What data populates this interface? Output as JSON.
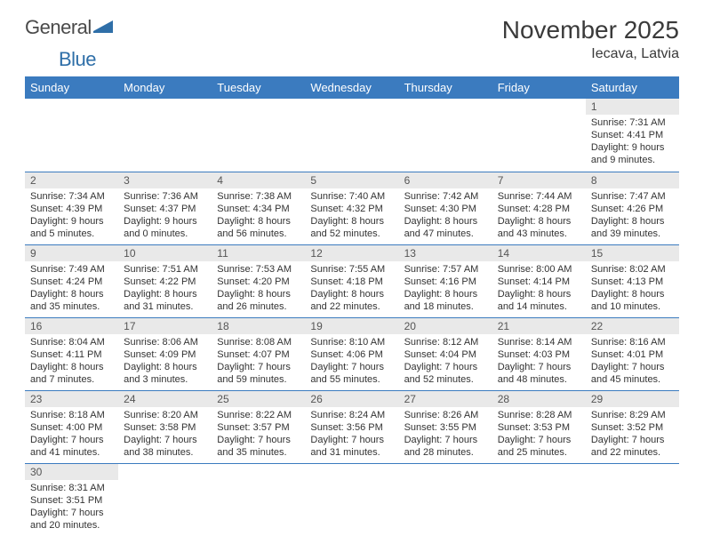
{
  "logo": {
    "text_a": "General",
    "text_b": "Blue"
  },
  "title": "November 2025",
  "location": "Iecava, Latvia",
  "colors": {
    "header_bg": "#3b7bbf",
    "header_fg": "#ffffff",
    "daynum_bg": "#e9e9e9",
    "cell_border": "#3b7bbf",
    "text": "#333333",
    "logo_gray": "#4a4a4a",
    "logo_blue": "#2f6fa8"
  },
  "day_headers": [
    "Sunday",
    "Monday",
    "Tuesday",
    "Wednesday",
    "Thursday",
    "Friday",
    "Saturday"
  ],
  "weeks": [
    [
      null,
      null,
      null,
      null,
      null,
      null,
      {
        "n": "1",
        "sr": "7:31 AM",
        "ss": "4:41 PM",
        "dh": "9",
        "dm": "9"
      }
    ],
    [
      {
        "n": "2",
        "sr": "7:34 AM",
        "ss": "4:39 PM",
        "dh": "9",
        "dm": "5"
      },
      {
        "n": "3",
        "sr": "7:36 AM",
        "ss": "4:37 PM",
        "dh": "9",
        "dm": "0"
      },
      {
        "n": "4",
        "sr": "7:38 AM",
        "ss": "4:34 PM",
        "dh": "8",
        "dm": "56"
      },
      {
        "n": "5",
        "sr": "7:40 AM",
        "ss": "4:32 PM",
        "dh": "8",
        "dm": "52"
      },
      {
        "n": "6",
        "sr": "7:42 AM",
        "ss": "4:30 PM",
        "dh": "8",
        "dm": "47"
      },
      {
        "n": "7",
        "sr": "7:44 AM",
        "ss": "4:28 PM",
        "dh": "8",
        "dm": "43"
      },
      {
        "n": "8",
        "sr": "7:47 AM",
        "ss": "4:26 PM",
        "dh": "8",
        "dm": "39"
      }
    ],
    [
      {
        "n": "9",
        "sr": "7:49 AM",
        "ss": "4:24 PM",
        "dh": "8",
        "dm": "35"
      },
      {
        "n": "10",
        "sr": "7:51 AM",
        "ss": "4:22 PM",
        "dh": "8",
        "dm": "31"
      },
      {
        "n": "11",
        "sr": "7:53 AM",
        "ss": "4:20 PM",
        "dh": "8",
        "dm": "26"
      },
      {
        "n": "12",
        "sr": "7:55 AM",
        "ss": "4:18 PM",
        "dh": "8",
        "dm": "22"
      },
      {
        "n": "13",
        "sr": "7:57 AM",
        "ss": "4:16 PM",
        "dh": "8",
        "dm": "18"
      },
      {
        "n": "14",
        "sr": "8:00 AM",
        "ss": "4:14 PM",
        "dh": "8",
        "dm": "14"
      },
      {
        "n": "15",
        "sr": "8:02 AM",
        "ss": "4:13 PM",
        "dh": "8",
        "dm": "10"
      }
    ],
    [
      {
        "n": "16",
        "sr": "8:04 AM",
        "ss": "4:11 PM",
        "dh": "8",
        "dm": "7"
      },
      {
        "n": "17",
        "sr": "8:06 AM",
        "ss": "4:09 PM",
        "dh": "8",
        "dm": "3"
      },
      {
        "n": "18",
        "sr": "8:08 AM",
        "ss": "4:07 PM",
        "dh": "7",
        "dm": "59"
      },
      {
        "n": "19",
        "sr": "8:10 AM",
        "ss": "4:06 PM",
        "dh": "7",
        "dm": "55"
      },
      {
        "n": "20",
        "sr": "8:12 AM",
        "ss": "4:04 PM",
        "dh": "7",
        "dm": "52"
      },
      {
        "n": "21",
        "sr": "8:14 AM",
        "ss": "4:03 PM",
        "dh": "7",
        "dm": "48"
      },
      {
        "n": "22",
        "sr": "8:16 AM",
        "ss": "4:01 PM",
        "dh": "7",
        "dm": "45"
      }
    ],
    [
      {
        "n": "23",
        "sr": "8:18 AM",
        "ss": "4:00 PM",
        "dh": "7",
        "dm": "41"
      },
      {
        "n": "24",
        "sr": "8:20 AM",
        "ss": "3:58 PM",
        "dh": "7",
        "dm": "38"
      },
      {
        "n": "25",
        "sr": "8:22 AM",
        "ss": "3:57 PM",
        "dh": "7",
        "dm": "35"
      },
      {
        "n": "26",
        "sr": "8:24 AM",
        "ss": "3:56 PM",
        "dh": "7",
        "dm": "31"
      },
      {
        "n": "27",
        "sr": "8:26 AM",
        "ss": "3:55 PM",
        "dh": "7",
        "dm": "28"
      },
      {
        "n": "28",
        "sr": "8:28 AM",
        "ss": "3:53 PM",
        "dh": "7",
        "dm": "25"
      },
      {
        "n": "29",
        "sr": "8:29 AM",
        "ss": "3:52 PM",
        "dh": "7",
        "dm": "22"
      }
    ],
    [
      {
        "n": "30",
        "sr": "8:31 AM",
        "ss": "3:51 PM",
        "dh": "7",
        "dm": "20"
      },
      null,
      null,
      null,
      null,
      null,
      null
    ]
  ],
  "labels": {
    "sunrise": "Sunrise:",
    "sunset": "Sunset:",
    "daylight_a": "Daylight:",
    "hours": "hours",
    "and": "and",
    "minutes": "minutes."
  }
}
